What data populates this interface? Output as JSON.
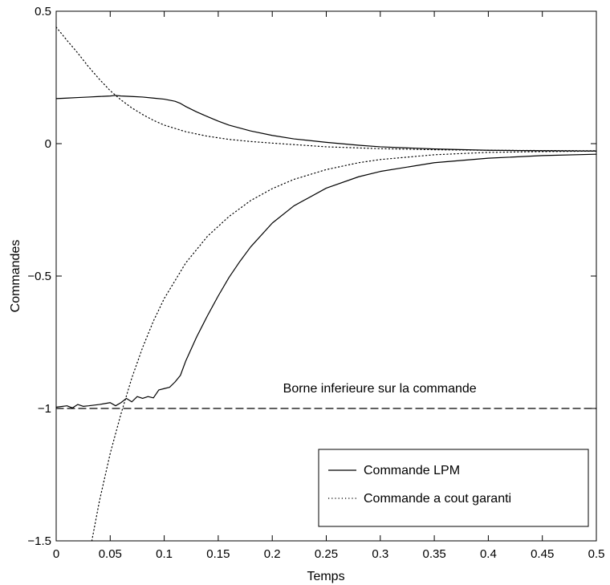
{
  "chart_data": {
    "type": "line",
    "title": "",
    "xlabel": "Temps",
    "ylabel": "Commandes",
    "xlim": [
      0,
      0.5
    ],
    "ylim": [
      -1.5,
      0.5
    ],
    "xticks": [
      0,
      0.05,
      0.1,
      0.15,
      0.2,
      0.25,
      0.3,
      0.35,
      0.4,
      0.45,
      0.5
    ],
    "xtick_labels": [
      "0",
      "0.05",
      "0.1",
      "0.15",
      "0.2",
      "0.25",
      "0.3",
      "0.35",
      "0.4",
      "0.45",
      "0.5"
    ],
    "yticks": [
      -1.5,
      -1,
      -0.5,
      0,
      0.5
    ],
    "ytick_labels": [
      "−1.5",
      "−1",
      "−0.5",
      "0",
      "0.5"
    ],
    "grid": false,
    "legend_position": "bottom-right",
    "annotation": {
      "text": "Borne inferieure sur la commande",
      "x": 0.21,
      "y": -0.94
    },
    "series": [
      {
        "name": "Commande LPM",
        "style": "solid",
        "color": "#000000",
        "x": [
          0,
          0.01,
          0.02,
          0.03,
          0.04,
          0.05,
          0.055,
          0.06,
          0.07,
          0.08,
          0.09,
          0.1,
          0.11,
          0.115,
          0.12,
          0.13,
          0.14,
          0.15,
          0.16,
          0.18,
          0.2,
          0.22,
          0.25,
          0.28,
          0.3,
          0.35,
          0.4,
          0.45,
          0.5
        ],
        "y": [
          0.17,
          0.172,
          0.174,
          0.176,
          0.178,
          0.18,
          0.182,
          0.18,
          0.178,
          0.176,
          0.172,
          0.168,
          0.16,
          0.152,
          0.14,
          0.12,
          0.102,
          0.085,
          0.07,
          0.048,
          0.031,
          0.018,
          0.005,
          -0.006,
          -0.012,
          -0.02,
          -0.025,
          -0.027,
          -0.028
        ]
      },
      {
        "name": "Commande LPM",
        "style": "solid",
        "color": "#000000",
        "x": [
          0,
          0.01,
          0.015,
          0.02,
          0.025,
          0.03,
          0.04,
          0.05,
          0.055,
          0.06,
          0.065,
          0.07,
          0.075,
          0.08,
          0.085,
          0.09,
          0.095,
          0.1,
          0.105,
          0.11,
          0.115,
          0.12,
          0.13,
          0.14,
          0.15,
          0.16,
          0.17,
          0.18,
          0.2,
          0.22,
          0.25,
          0.28,
          0.3,
          0.35,
          0.4,
          0.45,
          0.5
        ],
        "y": [
          -0.995,
          -0.99,
          -0.998,
          -0.985,
          -0.992,
          -0.99,
          -0.985,
          -0.978,
          -0.99,
          -0.978,
          -0.962,
          -0.975,
          -0.955,
          -0.962,
          -0.955,
          -0.96,
          -0.93,
          -0.925,
          -0.92,
          -0.9,
          -0.875,
          -0.82,
          -0.73,
          -0.65,
          -0.575,
          -0.505,
          -0.445,
          -0.39,
          -0.3,
          -0.235,
          -0.168,
          -0.125,
          -0.105,
          -0.072,
          -0.055,
          -0.045,
          -0.04
        ]
      },
      {
        "name": "Commande a cout garanti",
        "style": "dotted",
        "color": "#000000",
        "x": [
          0,
          0.01,
          0.02,
          0.03,
          0.04,
          0.05,
          0.06,
          0.07,
          0.08,
          0.09,
          0.1,
          0.12,
          0.14,
          0.16,
          0.18,
          0.2,
          0.25,
          0.3,
          0.35,
          0.4,
          0.45,
          0.5
        ],
        "y": [
          0.44,
          0.39,
          0.342,
          0.29,
          0.243,
          0.2,
          0.165,
          0.135,
          0.11,
          0.088,
          0.07,
          0.045,
          0.028,
          0.016,
          0.008,
          0.002,
          -0.012,
          -0.019,
          -0.023,
          -0.025,
          -0.026,
          -0.027
        ]
      },
      {
        "name": "Commande a cout garanti",
        "style": "dotted",
        "color": "#000000",
        "x": [
          0.033,
          0.04,
          0.05,
          0.06,
          0.07,
          0.08,
          0.09,
          0.1,
          0.12,
          0.14,
          0.16,
          0.18,
          0.2,
          0.22,
          0.25,
          0.28,
          0.3,
          0.35,
          0.4,
          0.45,
          0.5
        ],
        "y": [
          -1.5,
          -1.35,
          -1.17,
          -1.02,
          -0.885,
          -0.77,
          -0.67,
          -0.585,
          -0.45,
          -0.35,
          -0.275,
          -0.215,
          -0.17,
          -0.135,
          -0.098,
          -0.072,
          -0.06,
          -0.042,
          -0.033,
          -0.03,
          -0.028
        ]
      },
      {
        "name": "Borne inferieure sur la commande",
        "style": "dashed",
        "color": "#000000",
        "x": [
          0,
          0.5
        ],
        "y": [
          -1,
          -1
        ]
      }
    ],
    "legend": [
      {
        "label": "Commande LPM",
        "style": "solid"
      },
      {
        "label": "Commande a cout garanti",
        "style": "dotted"
      }
    ]
  }
}
